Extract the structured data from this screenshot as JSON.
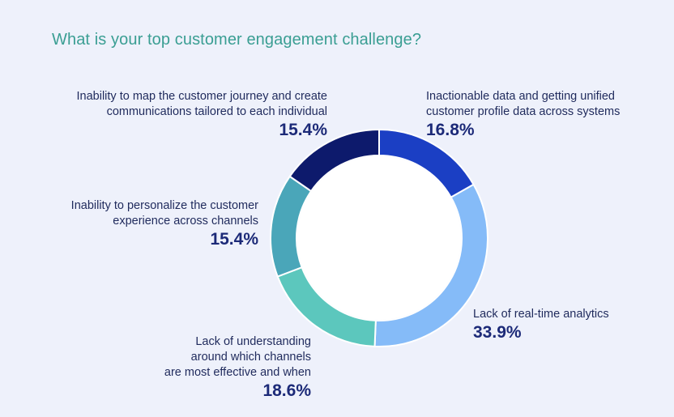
{
  "title": "What is your top customer engagement challenge?",
  "chart_data": {
    "type": "pie",
    "donut": true,
    "slices": [
      {
        "label": "Inactionable data and getting unified customer profile data across systems",
        "value": 16.8,
        "display": "16.8%",
        "color": "#1b3fc4"
      },
      {
        "label": "Lack of real-time analytics",
        "value": 33.9,
        "display": "33.9%",
        "color": "#85bbf8"
      },
      {
        "label": "Lack of understanding around which channels are most effective and when",
        "value": 18.6,
        "display": "18.6%",
        "color": "#5cc7bd"
      },
      {
        "label": "Inability to personalize the customer experience across channels",
        "value": 15.4,
        "display": "15.4%",
        "color": "#4aa6b9"
      },
      {
        "label": "Inability to map the customer journey and create communications tailored to each individual",
        "value": 15.4,
        "display": "15.4%",
        "color": "#0d1a6c"
      }
    ]
  },
  "callouts": [
    {
      "text": "Inactionable data and getting unified\ncustomer profile data across systems",
      "pct": "16.8%"
    },
    {
      "text": "Lack of real-time analytics",
      "pct": "33.9%"
    },
    {
      "text": "Lack of understanding\naround which channels\nare most effective and when",
      "pct": "18.6%"
    },
    {
      "text": "Inability to personalize the customer\nexperience across channels",
      "pct": "15.4%"
    },
    {
      "text": "Inability to map the customer journey and create\ncommunications tailored to each individual",
      "pct": "15.4%"
    }
  ]
}
